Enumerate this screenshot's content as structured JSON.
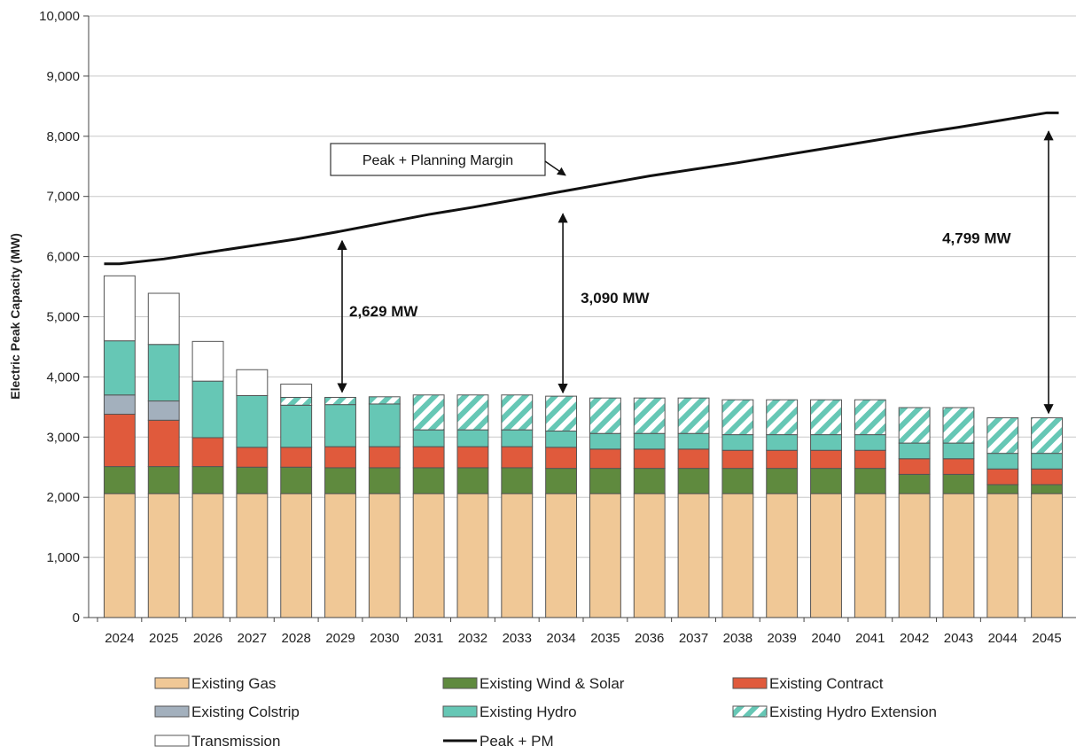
{
  "chart_data": {
    "type": "bar",
    "stacked": true,
    "title": "",
    "xlabel": "",
    "ylabel": "Electric Peak Capacity (MW)",
    "ylim": [
      0,
      10000
    ],
    "yticks": [
      0,
      1000,
      2000,
      3000,
      4000,
      5000,
      6000,
      7000,
      8000,
      9000,
      10000
    ],
    "ytick_labels": [
      "0",
      "1,000",
      "2,000",
      "3,000",
      "4,000",
      "5,000",
      "6,000",
      "7,000",
      "8,000",
      "9,000",
      "10,000"
    ],
    "grid": "horizontal",
    "legend_position": "bottom",
    "categories": [
      "2024",
      "2025",
      "2026",
      "2027",
      "2028",
      "2029",
      "2030",
      "2031",
      "2032",
      "2033",
      "2034",
      "2035",
      "2036",
      "2037",
      "2038",
      "2039",
      "2040",
      "2041",
      "2042",
      "2043",
      "2044",
      "2045"
    ],
    "series": [
      {
        "name": "Existing Gas",
        "color": "#f0c896",
        "values": [
          2060,
          2060,
          2060,
          2060,
          2060,
          2060,
          2060,
          2060,
          2060,
          2060,
          2060,
          2060,
          2060,
          2060,
          2060,
          2060,
          2060,
          2060,
          2060,
          2060,
          2060,
          2060
        ]
      },
      {
        "name": "Existing Wind & Solar",
        "color": "#5f8a3e",
        "values": [
          450,
          450,
          450,
          440,
          440,
          430,
          430,
          430,
          430,
          430,
          420,
          420,
          420,
          420,
          420,
          420,
          420,
          420,
          320,
          320,
          150,
          150
        ]
      },
      {
        "name": "Existing Contract",
        "color": "#e05a3c",
        "values": [
          870,
          770,
          480,
          330,
          330,
          350,
          350,
          350,
          350,
          350,
          350,
          320,
          320,
          320,
          300,
          300,
          300,
          300,
          260,
          260,
          260,
          260
        ]
      },
      {
        "name": "Existing Colstrip",
        "color": "#a3b0bd",
        "values": [
          320,
          320,
          0,
          0,
          0,
          0,
          0,
          0,
          0,
          0,
          0,
          0,
          0,
          0,
          0,
          0,
          0,
          0,
          0,
          0,
          0,
          0
        ]
      },
      {
        "name": "Existing Hydro",
        "color": "#66c7b5",
        "values": [
          900,
          940,
          940,
          860,
          700,
          700,
          710,
          280,
          280,
          280,
          270,
          260,
          260,
          260,
          260,
          260,
          260,
          260,
          260,
          260,
          260,
          260
        ]
      },
      {
        "name": "Existing Hydro Extension",
        "color": "#66c7b5",
        "pattern": "hatch",
        "values": [
          0,
          0,
          0,
          0,
          130,
          120,
          120,
          580,
          580,
          580,
          580,
          590,
          590,
          590,
          580,
          580,
          580,
          580,
          590,
          590,
          590,
          590
        ]
      },
      {
        "name": "Transmission",
        "color": "#ffffff",
        "values": [
          1080,
          850,
          660,
          430,
          220,
          0,
          0,
          0,
          0,
          0,
          0,
          0,
          0,
          0,
          0,
          0,
          0,
          0,
          0,
          0,
          0,
          0
        ]
      },
      {
        "name": "Peak + PM",
        "type": "line",
        "color": "#111111",
        "values": [
          5880,
          5960,
          6070,
          6180,
          6290,
          6420,
          6560,
          6700,
          6820,
          6950,
          7080,
          7210,
          7340,
          7450,
          7560,
          7680,
          7800,
          7920,
          8040,
          8150,
          8270,
          8390
        ]
      }
    ],
    "callout": {
      "label": "Peak + Planning Margin"
    },
    "annotations": [
      {
        "label": "2,629 MW",
        "x": "2029",
        "from": 3690,
        "to": 6320
      },
      {
        "label": "3,090 MW",
        "x": "2034",
        "from": 3680,
        "to": 6770
      },
      {
        "label": "4,799 MW",
        "x": "2045",
        "from": 3340,
        "to": 8140
      }
    ]
  }
}
